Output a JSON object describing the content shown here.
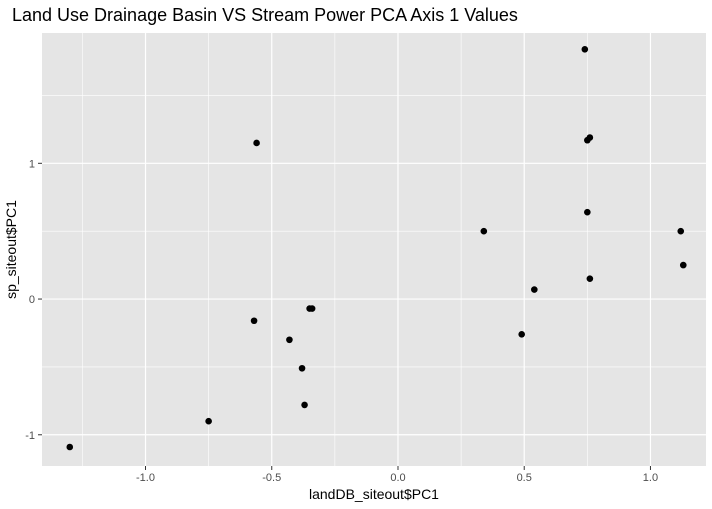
{
  "chart_data": {
    "type": "scatter",
    "title": "Land Use Drainage Basin VS Stream Power PCA Axis 1 Values",
    "xlabel": "landDB_siteout$PC1",
    "ylabel": "sp_siteout$PC1",
    "xlim": [
      -1.41,
      1.22
    ],
    "ylim": [
      -1.23,
      1.96
    ],
    "x_ticks": [
      -1.0,
      -0.5,
      0.0,
      0.5,
      1.0
    ],
    "x_tick_labels": [
      "-1.0",
      "-0.5",
      "0.0",
      "0.5",
      "1.0"
    ],
    "y_ticks": [
      -1,
      0,
      1
    ],
    "y_tick_labels": [
      "-1",
      "0",
      "1"
    ],
    "grid": true,
    "background_color": "#e5e5e5",
    "grid_color": "#ffffff",
    "point_color": "#000000",
    "points": [
      {
        "x": -1.3,
        "y": -1.09
      },
      {
        "x": -0.75,
        "y": -0.9
      },
      {
        "x": -0.57,
        "y": -0.16
      },
      {
        "x": -0.56,
        "y": 1.15
      },
      {
        "x": -0.43,
        "y": -0.3
      },
      {
        "x": -0.38,
        "y": -0.51
      },
      {
        "x": -0.37,
        "y": -0.78
      },
      {
        "x": -0.35,
        "y": -0.07
      },
      {
        "x": -0.34,
        "y": -0.07
      },
      {
        "x": 0.34,
        "y": 0.5
      },
      {
        "x": 0.49,
        "y": -0.26
      },
      {
        "x": 0.54,
        "y": 0.07
      },
      {
        "x": 0.74,
        "y": 1.84
      },
      {
        "x": 0.75,
        "y": 1.17
      },
      {
        "x": 0.75,
        "y": 0.64
      },
      {
        "x": 0.76,
        "y": 1.19
      },
      {
        "x": 0.76,
        "y": 0.15
      },
      {
        "x": 1.12,
        "y": 0.5
      },
      {
        "x": 1.13,
        "y": 0.25
      }
    ]
  }
}
